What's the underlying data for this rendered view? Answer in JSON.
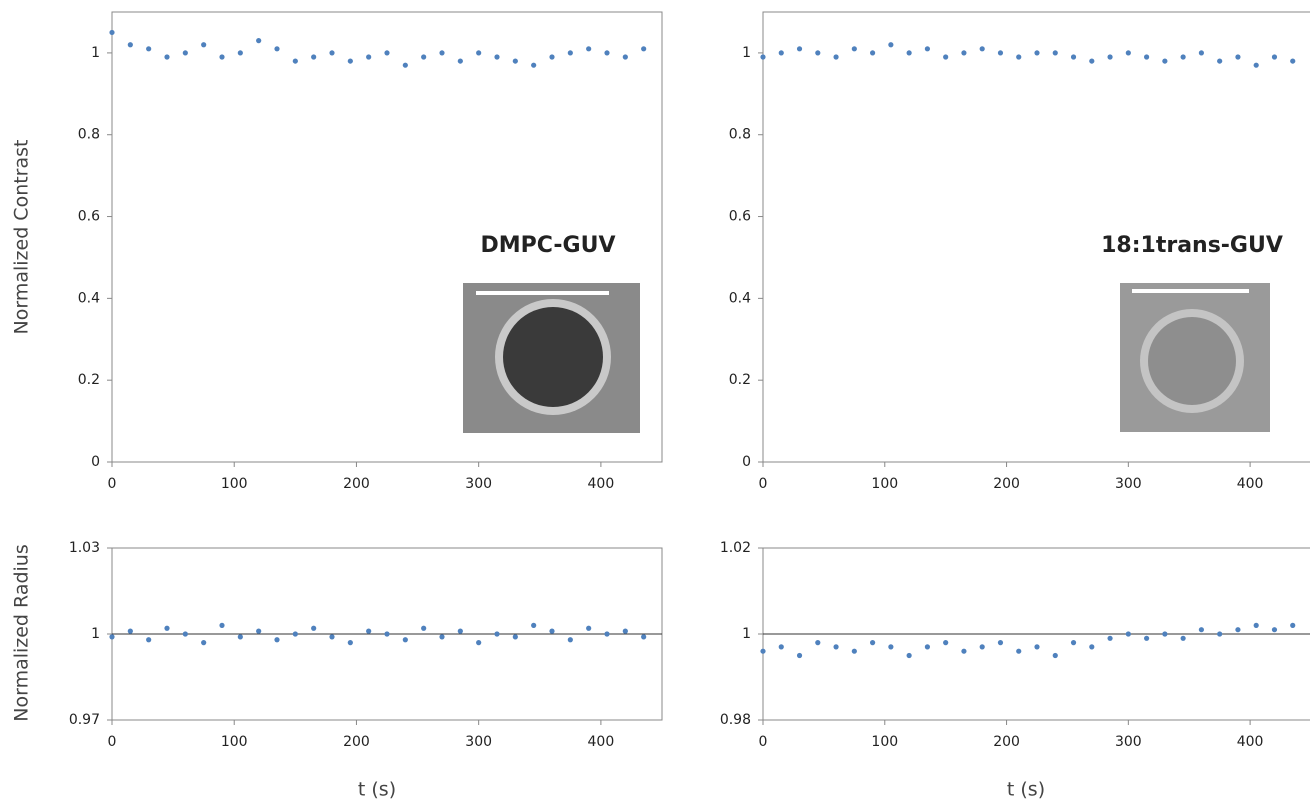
{
  "chart_data": [
    {
      "type": "scatter",
      "ylabel": "Normalized Contrast",
      "annotation": "DMPC-GUV",
      "color": "#4f81bd",
      "x": [
        0,
        15,
        30,
        45,
        60,
        75,
        90,
        105,
        120,
        135,
        150,
        165,
        180,
        195,
        210,
        225,
        240,
        255,
        270,
        285,
        300,
        315,
        330,
        345,
        360,
        375,
        390,
        405,
        420,
        435
      ],
      "values": [
        1.05,
        1.02,
        1.01,
        0.99,
        1.0,
        1.02,
        0.99,
        1.0,
        1.03,
        1.01,
        0.98,
        0.99,
        1.0,
        0.98,
        0.99,
        1.0,
        0.97,
        0.99,
        1.0,
        0.98,
        1.0,
        0.99,
        0.98,
        0.97,
        0.99,
        1.0,
        1.01,
        1.0,
        0.99,
        1.01
      ],
      "xlim": [
        0,
        450
      ],
      "xticks": [
        0,
        100,
        200,
        300,
        400
      ],
      "ylim": [
        0,
        1.1
      ],
      "yticks": [
        0,
        0.2,
        0.4,
        0.6,
        0.8,
        1
      ]
    },
    {
      "type": "scatter",
      "annotation": "18:1trans-GUV",
      "color": "#4f81bd",
      "x": [
        0,
        15,
        30,
        45,
        60,
        75,
        90,
        105,
        120,
        135,
        150,
        165,
        180,
        195,
        210,
        225,
        240,
        255,
        270,
        285,
        300,
        315,
        330,
        345,
        360,
        375,
        390,
        405,
        420,
        435
      ],
      "values": [
        0.99,
        1.0,
        1.01,
        1.0,
        0.99,
        1.01,
        1.0,
        1.02,
        1.0,
        1.01,
        0.99,
        1.0,
        1.01,
        1.0,
        0.99,
        1.0,
        1.0,
        0.99,
        0.98,
        0.99,
        1.0,
        0.99,
        0.98,
        0.99,
        1.0,
        0.98,
        0.99,
        0.97,
        0.99,
        0.98
      ],
      "xlim": [
        0,
        450
      ],
      "xticks": [
        0,
        100,
        200,
        300,
        400
      ],
      "ylim": [
        0,
        1.1
      ],
      "yticks": [
        0,
        0.2,
        0.4,
        0.6,
        0.8,
        1
      ]
    },
    {
      "type": "scatter",
      "ylabel": "Normalized Radius",
      "xlabel": "t (s)",
      "color": "#4f81bd",
      "reference_y": 1,
      "x": [
        0,
        15,
        30,
        45,
        60,
        75,
        90,
        105,
        120,
        135,
        150,
        165,
        180,
        195,
        210,
        225,
        240,
        255,
        270,
        285,
        300,
        315,
        330,
        345,
        360,
        375,
        390,
        405,
        420,
        435
      ],
      "values": [
        0.999,
        1.001,
        0.998,
        1.002,
        1.0,
        0.997,
        1.003,
        0.999,
        1.001,
        0.998,
        1.0,
        1.002,
        0.999,
        0.997,
        1.001,
        1.0,
        0.998,
        1.002,
        0.999,
        1.001,
        0.997,
        1.0,
        0.999,
        1.003,
        1.001,
        0.998,
        1.002,
        1.0,
        1.001,
        0.999
      ],
      "xlim": [
        0,
        450
      ],
      "xticks": [
        0,
        100,
        200,
        300,
        400
      ],
      "ylim": [
        0.97,
        1.03
      ],
      "yticks": [
        0.97,
        1,
        1.03
      ]
    },
    {
      "type": "scatter",
      "xlabel": "t (s)",
      "color": "#4f81bd",
      "reference_y": 1,
      "x": [
        0,
        15,
        30,
        45,
        60,
        75,
        90,
        105,
        120,
        135,
        150,
        165,
        180,
        195,
        210,
        225,
        240,
        255,
        270,
        285,
        300,
        315,
        330,
        345,
        360,
        375,
        390,
        405,
        420,
        435
      ],
      "values": [
        0.996,
        0.997,
        0.995,
        0.998,
        0.997,
        0.996,
        0.998,
        0.997,
        0.995,
        0.997,
        0.998,
        0.996,
        0.997,
        0.998,
        0.996,
        0.997,
        0.995,
        0.998,
        0.997,
        0.999,
        1.0,
        0.999,
        1.0,
        0.999,
        1.001,
        1.0,
        1.001,
        1.002,
        1.001,
        1.002
      ],
      "xlim": [
        0,
        450
      ],
      "xticks": [
        0,
        100,
        200,
        300,
        400
      ],
      "ylim": [
        0.98,
        1.02
      ],
      "yticks": [
        0.98,
        1,
        1.02
      ]
    }
  ]
}
